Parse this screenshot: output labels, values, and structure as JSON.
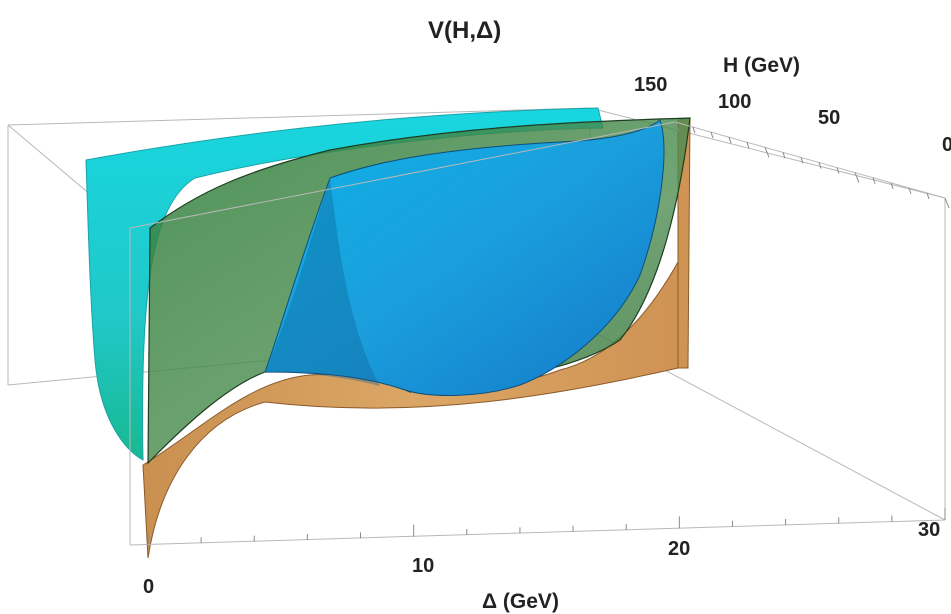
{
  "chart_data": {
    "type": "surface3d",
    "title": "V(H,Δ)",
    "xlabel": "Δ (GeV)",
    "ylabel": "H (GeV)",
    "xlim": [
      0,
      30
    ],
    "ylim": [
      0,
      150
    ],
    "x_ticks": [
      "0",
      "10",
      "20",
      "30"
    ],
    "y_ticks": [
      "0",
      "50",
      "100",
      "150"
    ],
    "surfaces": [
      {
        "color": "#1ec8d8",
        "description": "cyan surface"
      },
      {
        "color": "#3a8a3c",
        "description": "green surface"
      },
      {
        "color": "#1c9fdc",
        "description": "blue surface"
      },
      {
        "color": "#d79b58",
        "description": "orange surface"
      }
    ]
  }
}
